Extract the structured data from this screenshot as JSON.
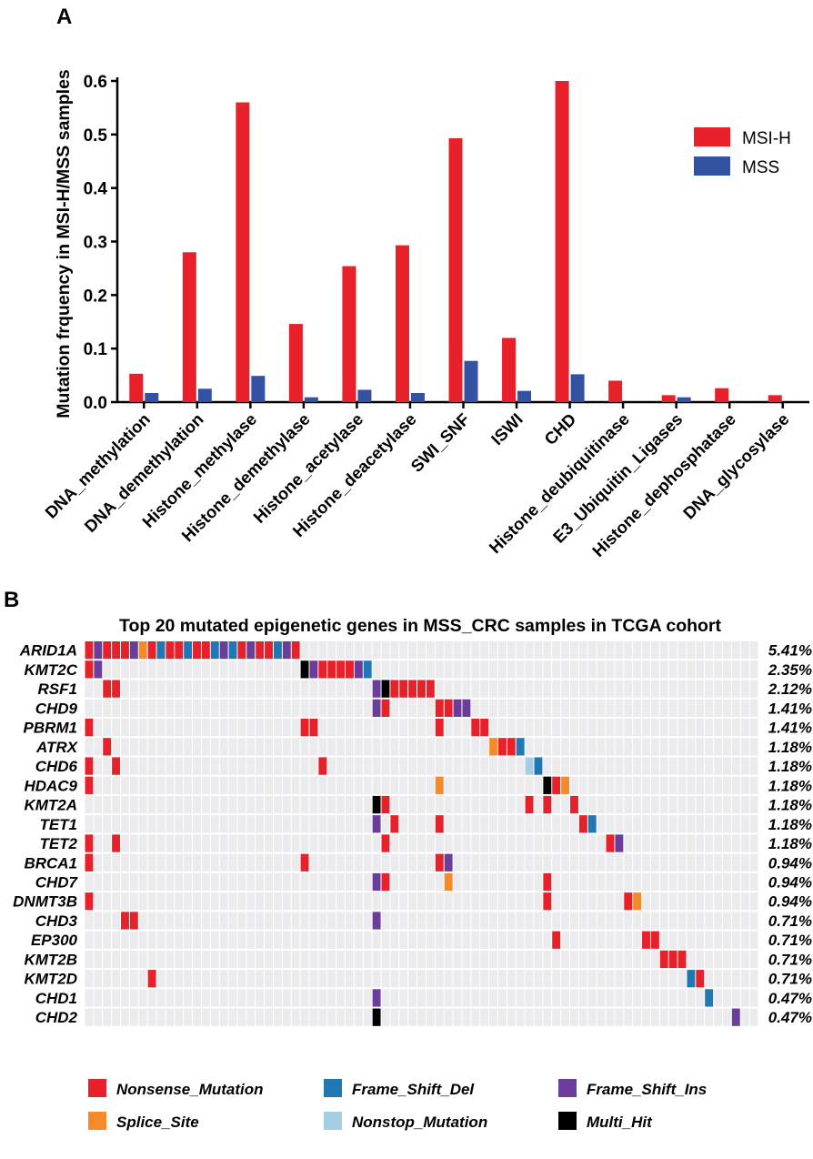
{
  "panels": {
    "a_label": "A",
    "b_label": "B"
  },
  "chart_data": [
    {
      "type": "bar",
      "ylabel": "Mutation frquency in MSI-H/MSS samples",
      "xlabel": "",
      "ylim": [
        0,
        0.6
      ],
      "yticks": [
        "0.0",
        "0.1",
        "0.2",
        "0.3",
        "0.4",
        "0.5",
        "0.6"
      ],
      "legend_position": "top-right",
      "categories": [
        "DNA_methylation",
        "DNA_demethylation",
        "Histone_methylase",
        "Histone_demethylase",
        "Histone_acetylase",
        "Histone_deacetylase",
        "SWI_SNF",
        "ISWI",
        "CHD",
        "Histone_deubiquitinase",
        "E3_Ubiquitin_Ligases",
        "Histone_dephosphatase",
        "DNA_glycosylase"
      ],
      "series": [
        {
          "name": "MSI-H",
          "color": "#e8202a",
          "values": [
            0.053,
            0.28,
            0.56,
            0.146,
            0.254,
            0.293,
            0.493,
            0.12,
            0.6,
            0.04,
            0.013,
            0.026,
            0.013
          ]
        },
        {
          "name": "MSS",
          "color": "#3452a4",
          "values": [
            0.017,
            0.025,
            0.049,
            0.009,
            0.023,
            0.017,
            0.077,
            0.021,
            0.052,
            0,
            0.009,
            0,
            0
          ]
        }
      ]
    },
    {
      "type": "heatmap",
      "title": "Top 20 mutated epigenetic genes in MSS_CRC samples in TCGA cohort",
      "n_samples": 75,
      "genes": [
        "ARID1A",
        "KMT2C",
        "RSF1",
        "CHD9",
        "PBRM1",
        "ATRX",
        "CHD6",
        "HDAC9",
        "KMT2A",
        "TET1",
        "TET2",
        "BRCA1",
        "CHD7",
        "DNMT3B",
        "CHD3",
        "EP300",
        "KMT2B",
        "KMT2D",
        "CHD1",
        "CHD2"
      ],
      "frequencies": [
        "5.41%",
        "2.35%",
        "2.12%",
        "1.41%",
        "1.41%",
        "1.18%",
        "1.18%",
        "1.18%",
        "1.18%",
        "1.18%",
        "1.18%",
        "0.94%",
        "0.94%",
        "0.94%",
        "0.71%",
        "0.71%",
        "0.71%",
        "0.71%",
        "0.47%",
        "0.47%"
      ],
      "mutation_types": [
        {
          "key": "N",
          "label": "Nonsense_Mutation",
          "color": "#e8202a"
        },
        {
          "key": "D",
          "label": "Frame_Shift_Del",
          "color": "#1f78b4"
        },
        {
          "key": "I",
          "label": "Frame_Shift_Ins",
          "color": "#6a3d9a"
        },
        {
          "key": "S",
          "label": "Splice_Site",
          "color": "#f58a2a"
        },
        {
          "key": "T",
          "label": "Nonstop_Mutation",
          "color": "#a6cee3"
        },
        {
          "key": "M",
          "label": "Multi_Hit",
          "color": "#000000"
        }
      ],
      "background_color": "#ebebee",
      "cells": [
        [
          "ARID1A",
          0,
          "N"
        ],
        [
          "ARID1A",
          1,
          "I"
        ],
        [
          "ARID1A",
          2,
          "N"
        ],
        [
          "ARID1A",
          3,
          "N"
        ],
        [
          "ARID1A",
          4,
          "N"
        ],
        [
          "ARID1A",
          5,
          "I"
        ],
        [
          "ARID1A",
          6,
          "S"
        ],
        [
          "ARID1A",
          7,
          "N"
        ],
        [
          "ARID1A",
          8,
          "D"
        ],
        [
          "ARID1A",
          9,
          "N"
        ],
        [
          "ARID1A",
          10,
          "N"
        ],
        [
          "ARID1A",
          11,
          "D"
        ],
        [
          "ARID1A",
          12,
          "N"
        ],
        [
          "ARID1A",
          13,
          "N"
        ],
        [
          "ARID1A",
          14,
          "D"
        ],
        [
          "ARID1A",
          15,
          "I"
        ],
        [
          "ARID1A",
          16,
          "D"
        ],
        [
          "ARID1A",
          17,
          "N"
        ],
        [
          "ARID1A",
          18,
          "I"
        ],
        [
          "ARID1A",
          19,
          "N"
        ],
        [
          "ARID1A",
          20,
          "N"
        ],
        [
          "ARID1A",
          21,
          "D"
        ],
        [
          "ARID1A",
          22,
          "I"
        ],
        [
          "ARID1A",
          23,
          "N"
        ],
        [
          "KMT2C",
          0,
          "N"
        ],
        [
          "KMT2C",
          1,
          "I"
        ],
        [
          "KMT2C",
          24,
          "M"
        ],
        [
          "KMT2C",
          25,
          "I"
        ],
        [
          "KMT2C",
          26,
          "N"
        ],
        [
          "KMT2C",
          27,
          "N"
        ],
        [
          "KMT2C",
          28,
          "N"
        ],
        [
          "KMT2C",
          29,
          "N"
        ],
        [
          "KMT2C",
          30,
          "I"
        ],
        [
          "KMT2C",
          31,
          "D"
        ],
        [
          "RSF1",
          2,
          "N"
        ],
        [
          "RSF1",
          3,
          "N"
        ],
        [
          "RSF1",
          32,
          "I"
        ],
        [
          "RSF1",
          33,
          "M"
        ],
        [
          "RSF1",
          34,
          "N"
        ],
        [
          "RSF1",
          35,
          "N"
        ],
        [
          "RSF1",
          36,
          "N"
        ],
        [
          "RSF1",
          37,
          "N"
        ],
        [
          "RSF1",
          38,
          "N"
        ],
        [
          "CHD9",
          32,
          "I"
        ],
        [
          "CHD9",
          33,
          "N"
        ],
        [
          "CHD9",
          39,
          "N"
        ],
        [
          "CHD9",
          40,
          "N"
        ],
        [
          "CHD9",
          41,
          "I"
        ],
        [
          "CHD9",
          42,
          "I"
        ],
        [
          "PBRM1",
          0,
          "N"
        ],
        [
          "PBRM1",
          24,
          "N"
        ],
        [
          "PBRM1",
          25,
          "N"
        ],
        [
          "PBRM1",
          39,
          "N"
        ],
        [
          "PBRM1",
          43,
          "N"
        ],
        [
          "PBRM1",
          44,
          "N"
        ],
        [
          "ATRX",
          2,
          "N"
        ],
        [
          "ATRX",
          45,
          "S"
        ],
        [
          "ATRX",
          46,
          "N"
        ],
        [
          "ATRX",
          47,
          "N"
        ],
        [
          "ATRX",
          48,
          "D"
        ],
        [
          "CHD6",
          0,
          "N"
        ],
        [
          "CHD6",
          3,
          "N"
        ],
        [
          "CHD6",
          26,
          "N"
        ],
        [
          "CHD6",
          49,
          "T"
        ],
        [
          "CHD6",
          50,
          "D"
        ],
        [
          "HDAC9",
          0,
          "N"
        ],
        [
          "HDAC9",
          39,
          "S"
        ],
        [
          "HDAC9",
          51,
          "M"
        ],
        [
          "HDAC9",
          52,
          "N"
        ],
        [
          "HDAC9",
          53,
          "S"
        ],
        [
          "KMT2A",
          32,
          "M"
        ],
        [
          "KMT2A",
          33,
          "N"
        ],
        [
          "KMT2A",
          49,
          "N"
        ],
        [
          "KMT2A",
          51,
          "N"
        ],
        [
          "KMT2A",
          54,
          "N"
        ],
        [
          "TET1",
          32,
          "I"
        ],
        [
          "TET1",
          34,
          "N"
        ],
        [
          "TET1",
          39,
          "N"
        ],
        [
          "TET1",
          55,
          "N"
        ],
        [
          "TET1",
          56,
          "D"
        ],
        [
          "TET2",
          0,
          "N"
        ],
        [
          "TET2",
          3,
          "N"
        ],
        [
          "TET2",
          33,
          "N"
        ],
        [
          "TET2",
          58,
          "N"
        ],
        [
          "TET2",
          59,
          "I"
        ],
        [
          "BRCA1",
          0,
          "N"
        ],
        [
          "BRCA1",
          24,
          "N"
        ],
        [
          "BRCA1",
          39,
          "N"
        ],
        [
          "BRCA1",
          40,
          "I"
        ],
        [
          "CHD7",
          32,
          "I"
        ],
        [
          "CHD7",
          33,
          "N"
        ],
        [
          "CHD7",
          40,
          "S"
        ],
        [
          "CHD7",
          51,
          "N"
        ],
        [
          "DNMT3B",
          0,
          "N"
        ],
        [
          "DNMT3B",
          51,
          "N"
        ],
        [
          "DNMT3B",
          60,
          "N"
        ],
        [
          "DNMT3B",
          61,
          "S"
        ],
        [
          "CHD3",
          4,
          "N"
        ],
        [
          "CHD3",
          5,
          "N"
        ],
        [
          "CHD3",
          32,
          "I"
        ],
        [
          "EP300",
          52,
          "N"
        ],
        [
          "EP300",
          62,
          "N"
        ],
        [
          "EP300",
          63,
          "N"
        ],
        [
          "KMT2B",
          64,
          "N"
        ],
        [
          "KMT2B",
          65,
          "N"
        ],
        [
          "KMT2B",
          66,
          "N"
        ],
        [
          "KMT2D",
          7,
          "N"
        ],
        [
          "KMT2D",
          67,
          "D"
        ],
        [
          "KMT2D",
          68,
          "N"
        ],
        [
          "CHD1",
          32,
          "I"
        ],
        [
          "CHD1",
          69,
          "D"
        ],
        [
          "CHD2",
          32,
          "M"
        ],
        [
          "CHD2",
          72,
          "I"
        ]
      ]
    }
  ]
}
